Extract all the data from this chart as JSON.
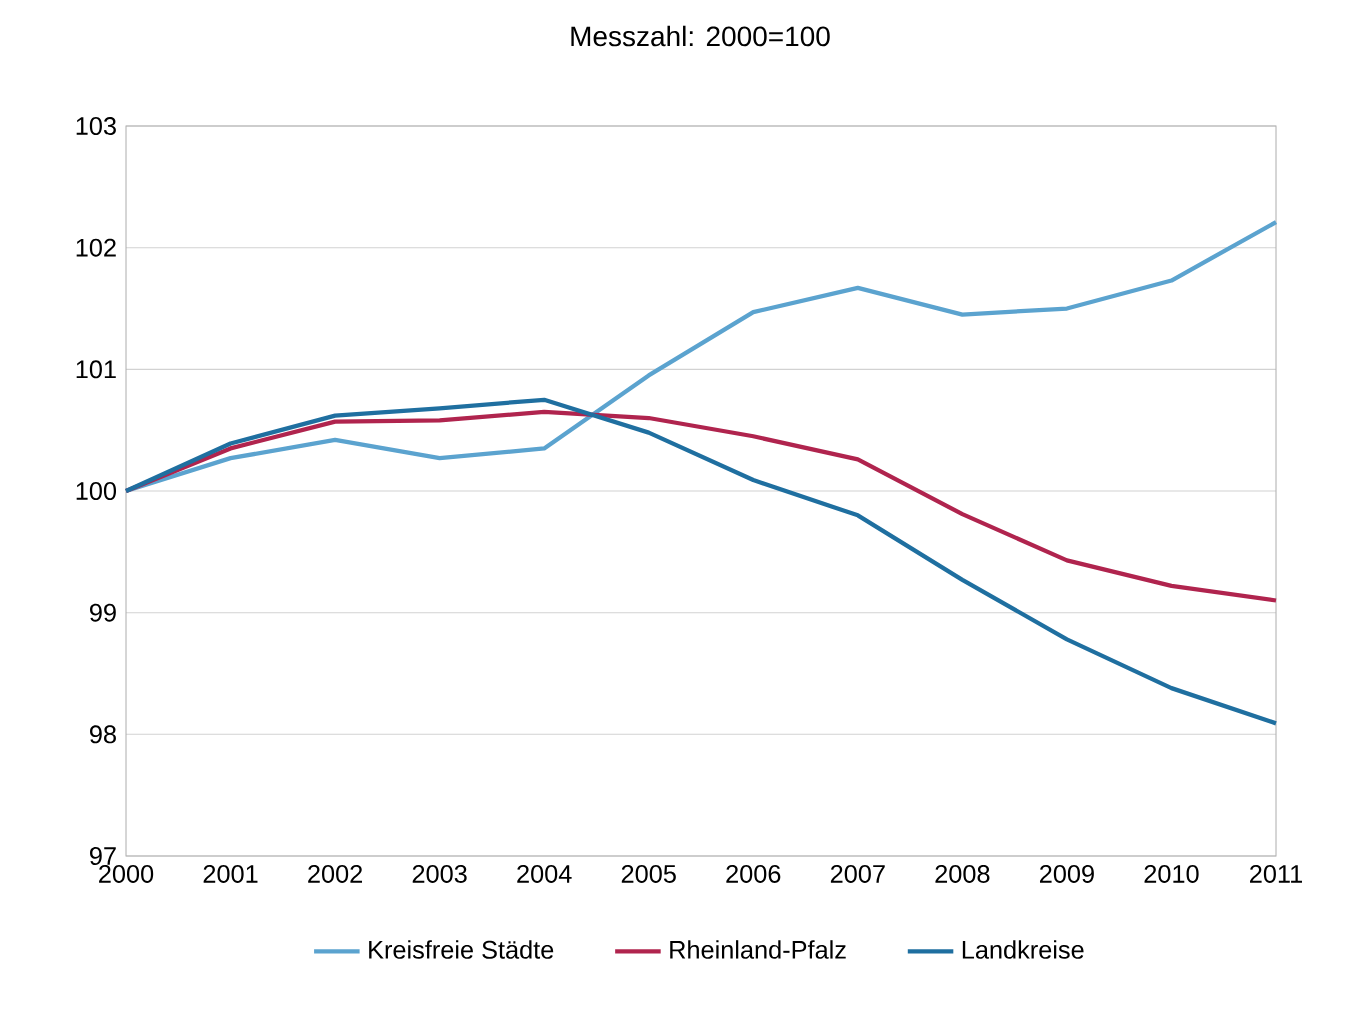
{
  "chart_data": {
    "type": "line",
    "title": "Messzahl: 2000=100",
    "x": [
      2000,
      2001,
      2002,
      2003,
      2004,
      2005,
      2006,
      2007,
      2008,
      2009,
      2010,
      2011
    ],
    "series": [
      {
        "name": "Kreisfreie Städte",
        "color": "#5ba3cf",
        "values": [
          100,
          100.27,
          100.42,
          100.27,
          100.35,
          100.95,
          101.47,
          101.67,
          101.45,
          101.5,
          101.73,
          102.21
        ]
      },
      {
        "name": "Rheinland-Pfalz",
        "color": "#b0244e",
        "values": [
          100,
          100.35,
          100.57,
          100.58,
          100.65,
          100.6,
          100.45,
          100.26,
          99.81,
          99.43,
          99.22,
          99.1
        ]
      },
      {
        "name": "Landkreise",
        "color": "#1f6fa0",
        "values": [
          100,
          100.39,
          100.62,
          100.68,
          100.75,
          100.48,
          100.09,
          99.8,
          99.27,
          98.78,
          98.38,
          98.09
        ]
      }
    ],
    "xlim": [
      2000,
      2011
    ],
    "xticks": [
      2000,
      2001,
      2002,
      2003,
      2004,
      2005,
      2006,
      2007,
      2008,
      2009,
      2010,
      2011
    ],
    "ylim": [
      97,
      103
    ],
    "yticks": [
      97,
      98,
      99,
      100,
      101,
      102,
      103
    ],
    "grid": "y",
    "legend": "bottom",
    "marker": "none",
    "line_style": "solid"
  }
}
